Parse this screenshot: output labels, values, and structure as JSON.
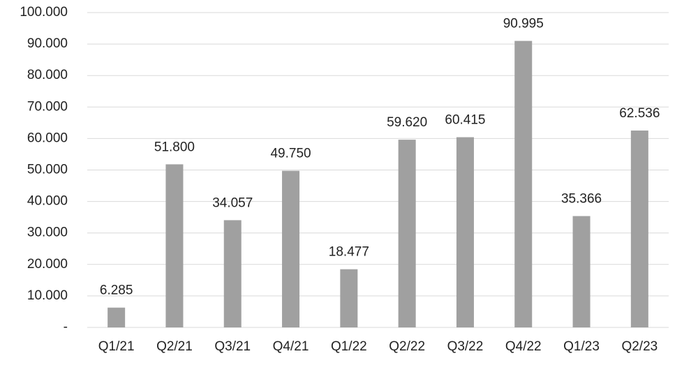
{
  "chart_data": {
    "type": "bar",
    "categories": [
      "Q1/21",
      "Q2/21",
      "Q3/21",
      "Q4/21",
      "Q1/22",
      "Q2/22",
      "Q3/22",
      "Q4/22",
      "Q1/23",
      "Q2/23"
    ],
    "values": [
      6285,
      51800,
      34057,
      49750,
      18477,
      59620,
      60415,
      90995,
      35366,
      62536
    ],
    "value_labels": [
      "6.285",
      "51.800",
      "34.057",
      "49.750",
      "18.477",
      "59.620",
      "60.415",
      "90.995",
      "35.366",
      "62.536"
    ],
    "color": "#a0a0a0",
    "ylim": [
      0,
      100000
    ],
    "yticks": [
      {
        "value": 0,
        "label": "-"
      },
      {
        "value": 10000,
        "label": "10.000"
      },
      {
        "value": 20000,
        "label": "20.000"
      },
      {
        "value": 30000,
        "label": "30.000"
      },
      {
        "value": 40000,
        "label": "40.000"
      },
      {
        "value": 50000,
        "label": "50.000"
      },
      {
        "value": 60000,
        "label": "60.000"
      },
      {
        "value": 70000,
        "label": "70.000"
      },
      {
        "value": 80000,
        "label": "80.000"
      },
      {
        "value": 90000,
        "label": "90.000"
      },
      {
        "value": 100000,
        "label": "100.000"
      }
    ],
    "grid": true
  }
}
